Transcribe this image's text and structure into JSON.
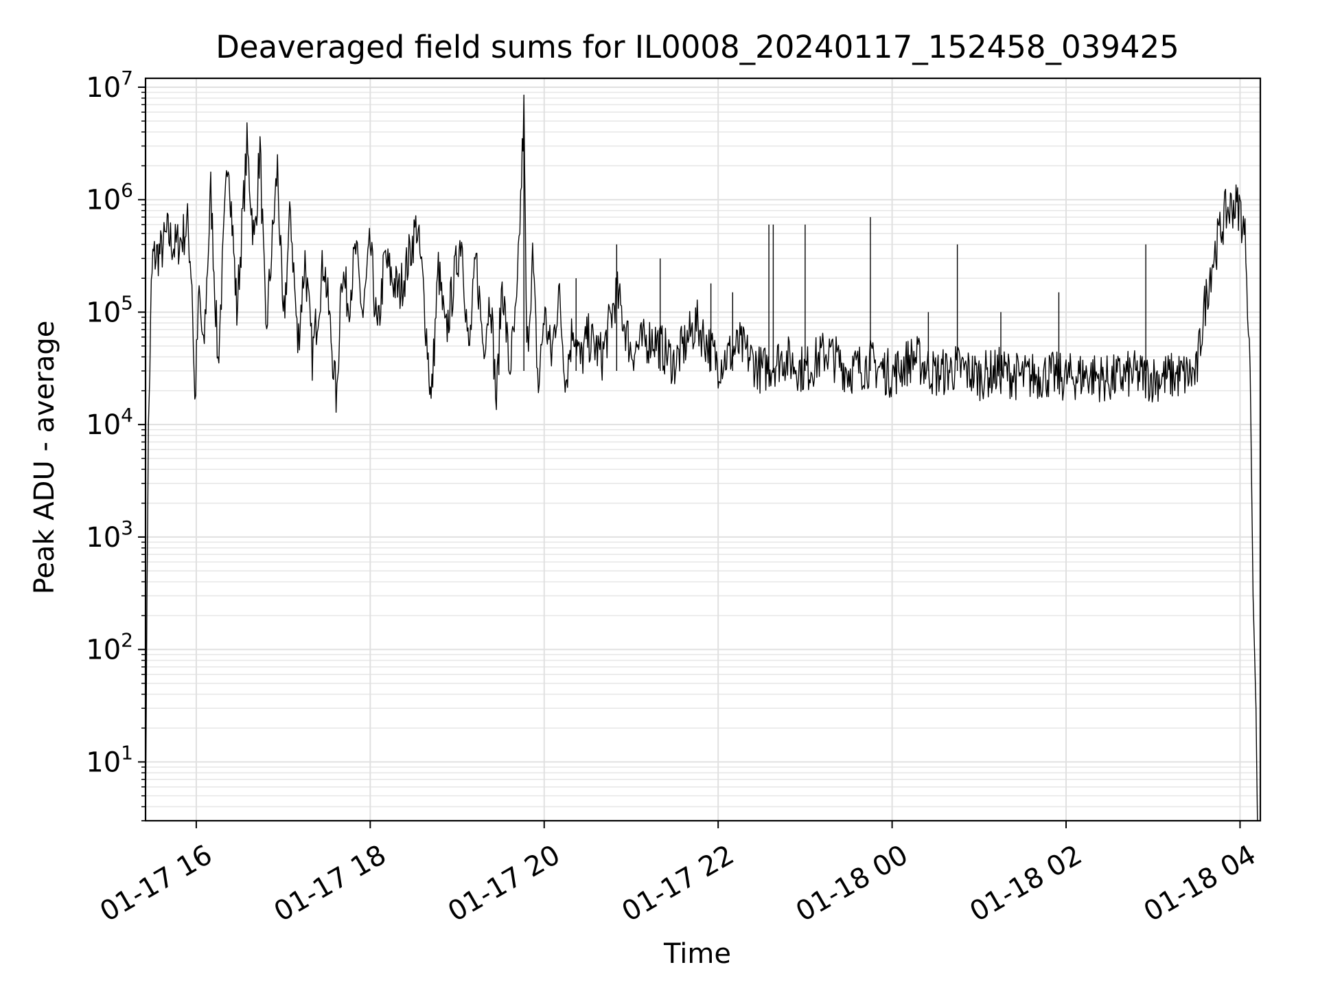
{
  "chart_data": {
    "type": "line",
    "title": "Deaveraged field sums for IL0008_20240117_152458_039425",
    "xlabel": "Time",
    "ylabel": "Peak ADU - average",
    "yscale": "log",
    "ylim": [
      3,
      12000000
    ],
    "xlim": [
      "2024-01-17T15:25",
      "2024-01-18T04:14"
    ],
    "grid": true,
    "x_ticks": [
      {
        "t": "2024-01-17T16:00",
        "label": "01-17 16"
      },
      {
        "t": "2024-01-17T18:00",
        "label": "01-17 18"
      },
      {
        "t": "2024-01-17T20:00",
        "label": "01-17 20"
      },
      {
        "t": "2024-01-17T22:00",
        "label": "01-17 22"
      },
      {
        "t": "2024-01-18T00:00",
        "label": "01-18 00"
      },
      {
        "t": "2024-01-18T02:00",
        "label": "01-18 02"
      },
      {
        "t": "2024-01-18T04:00",
        "label": "01-18 04"
      }
    ],
    "y_ticks": [
      {
        "value": 10,
        "base": "10",
        "exp": "1"
      },
      {
        "value": 100,
        "base": "10",
        "exp": "2"
      },
      {
        "value": 1000,
        "base": "10",
        "exp": "3"
      },
      {
        "value": 10000,
        "base": "10",
        "exp": "4"
      },
      {
        "value": 100000,
        "base": "10",
        "exp": "5"
      },
      {
        "value": 1000000,
        "base": "10",
        "exp": "6"
      },
      {
        "value": 10000000,
        "base": "10",
        "exp": "7"
      }
    ],
    "series": [
      {
        "color": "#000000",
        "points": [
          [
            "2024-01-17T15:25",
            3
          ],
          [
            "2024-01-17T15:26",
            300
          ],
          [
            "2024-01-17T15:27",
            8000
          ],
          [
            "2024-01-17T15:29",
            150000
          ],
          [
            "2024-01-17T15:30",
            300000
          ],
          [
            "2024-01-17T15:36",
            350000
          ],
          [
            "2024-01-17T15:40",
            500000
          ],
          [
            "2024-01-17T15:45",
            380000
          ],
          [
            "2024-01-17T15:50",
            450000
          ],
          [
            "2024-01-17T15:54",
            600000
          ],
          [
            "2024-01-17T15:57",
            200000
          ],
          [
            "2024-01-17T15:59",
            15000
          ],
          [
            "2024-01-17T16:02",
            150000
          ],
          [
            "2024-01-17T16:05",
            40000
          ],
          [
            "2024-01-17T16:10",
            1200000
          ],
          [
            "2024-01-17T16:15",
            35000
          ],
          [
            "2024-01-17T16:22",
            2900000
          ],
          [
            "2024-01-17T16:28",
            100000
          ],
          [
            "2024-01-17T16:35",
            3000000
          ],
          [
            "2024-01-17T16:40",
            400000
          ],
          [
            "2024-01-17T16:44",
            3000000
          ],
          [
            "2024-01-17T16:48",
            60000
          ],
          [
            "2024-01-17T16:56",
            2000000
          ],
          [
            "2024-01-17T17:00",
            70000
          ],
          [
            "2024-01-17T17:05",
            800000
          ],
          [
            "2024-01-17T17:10",
            50000
          ],
          [
            "2024-01-17T17:15",
            300000
          ],
          [
            "2024-01-17T17:20",
            40000
          ],
          [
            "2024-01-17T17:28",
            300000
          ],
          [
            "2024-01-17T17:33",
            60000
          ],
          [
            "2024-01-17T17:37",
            15000
          ],
          [
            "2024-01-17T17:40",
            250000
          ],
          [
            "2024-01-17T17:45",
            120000
          ],
          [
            "2024-01-17T17:50",
            350000
          ],
          [
            "2024-01-17T17:55",
            90000
          ],
          [
            "2024-01-17T18:00",
            400000
          ],
          [
            "2024-01-17T18:05",
            60000
          ],
          [
            "2024-01-17T18:10",
            300000
          ],
          [
            "2024-01-17T18:15",
            200000
          ],
          [
            "2024-01-17T18:20",
            150000
          ],
          [
            "2024-01-17T18:25",
            250000
          ],
          [
            "2024-01-17T18:32",
            600000
          ],
          [
            "2024-01-17T18:36",
            200000
          ],
          [
            "2024-01-17T18:40",
            40000
          ],
          [
            "2024-01-17T18:42",
            15000
          ],
          [
            "2024-01-17T18:47",
            250000
          ],
          [
            "2024-01-17T18:52",
            60000
          ],
          [
            "2024-01-17T18:58",
            200000
          ],
          [
            "2024-01-17T19:03",
            500000
          ],
          [
            "2024-01-17T19:08",
            40000
          ],
          [
            "2024-01-17T19:13",
            300000
          ],
          [
            "2024-01-17T19:18",
            50000
          ],
          [
            "2024-01-17T19:23",
            150000
          ],
          [
            "2024-01-17T19:27",
            15000
          ],
          [
            "2024-01-17T19:31",
            200000
          ],
          [
            "2024-01-17T19:36",
            30000
          ],
          [
            "2024-01-17T19:41",
            100000
          ],
          [
            "2024-01-17T19:46",
            6000000
          ],
          [
            "2024-01-17T19:48",
            40000
          ],
          [
            "2024-01-17T19:52",
            300000
          ],
          [
            "2024-01-17T19:56",
            20000
          ],
          [
            "2024-01-17T20:00",
            100000
          ],
          [
            "2024-01-17T20:05",
            40000
          ],
          [
            "2024-01-17T20:10",
            150000
          ],
          [
            "2024-01-17T20:15",
            25000
          ],
          [
            "2024-01-17T20:20",
            80000
          ],
          [
            "2024-01-17T20:25",
            35000
          ],
          [
            "2024-01-17T20:30",
            60000
          ],
          [
            "2024-01-17T20:40",
            40000
          ],
          [
            "2024-01-17T20:50",
            150000
          ],
          [
            "2024-01-17T21:00",
            45000
          ],
          [
            "2024-01-17T21:15",
            60000
          ],
          [
            "2024-01-17T21:30",
            35000
          ],
          [
            "2024-01-17T21:45",
            80000
          ],
          [
            "2024-01-17T22:00",
            35000
          ],
          [
            "2024-01-17T22:15",
            50000
          ],
          [
            "2024-01-17T22:30",
            30000
          ],
          [
            "2024-01-17T22:45",
            40000
          ],
          [
            "2024-01-17T23:00",
            30000
          ],
          [
            "2024-01-17T23:15",
            45000
          ],
          [
            "2024-01-17T23:30",
            30000
          ],
          [
            "2024-01-17T23:45",
            35000
          ],
          [
            "2024-01-18T00:00",
            28000
          ],
          [
            "2024-01-18T00:15",
            40000
          ],
          [
            "2024-01-18T00:30",
            28000
          ],
          [
            "2024-01-18T00:45",
            32000
          ],
          [
            "2024-01-18T01:00",
            27000
          ],
          [
            "2024-01-18T01:15",
            30000
          ],
          [
            "2024-01-18T01:30",
            26000
          ],
          [
            "2024-01-18T01:45",
            28000
          ],
          [
            "2024-01-18T02:00",
            26000
          ],
          [
            "2024-01-18T02:15",
            28000
          ],
          [
            "2024-01-18T02:30",
            25000
          ],
          [
            "2024-01-18T02:45",
            28000
          ],
          [
            "2024-01-18T03:00",
            26000
          ],
          [
            "2024-01-18T03:15",
            27000
          ],
          [
            "2024-01-18T03:30",
            28000
          ],
          [
            "2024-01-18T03:35",
            100000
          ],
          [
            "2024-01-18T03:40",
            250000
          ],
          [
            "2024-01-18T03:45",
            450000
          ],
          [
            "2024-01-18T03:50",
            750000
          ],
          [
            "2024-01-18T03:55",
            900000
          ],
          [
            "2024-01-18T04:00",
            850000
          ],
          [
            "2024-01-18T04:04",
            400000
          ],
          [
            "2024-01-18T04:07",
            30000
          ],
          [
            "2024-01-18T04:09",
            300
          ],
          [
            "2024-01-18T04:11",
            30
          ],
          [
            "2024-01-18T04:12",
            3
          ]
        ],
        "spikes": [
          [
            "2024-01-17T19:46",
            6500000
          ],
          [
            "2024-01-17T20:22",
            200000
          ],
          [
            "2024-01-17T20:50",
            400000
          ],
          [
            "2024-01-17T21:20",
            300000
          ],
          [
            "2024-01-17T21:55",
            180000
          ],
          [
            "2024-01-17T22:35",
            600000
          ],
          [
            "2024-01-17T22:38",
            600000
          ],
          [
            "2024-01-17T23:00",
            600000
          ],
          [
            "2024-01-17T23:45",
            700000
          ],
          [
            "2024-01-18T00:25",
            100000
          ],
          [
            "2024-01-18T00:45",
            400000
          ],
          [
            "2024-01-18T01:55",
            150000
          ],
          [
            "2024-01-18T02:55",
            400000
          ],
          [
            "2024-01-17T22:10",
            150000
          ],
          [
            "2024-01-18T01:15",
            100000
          ]
        ]
      }
    ]
  }
}
